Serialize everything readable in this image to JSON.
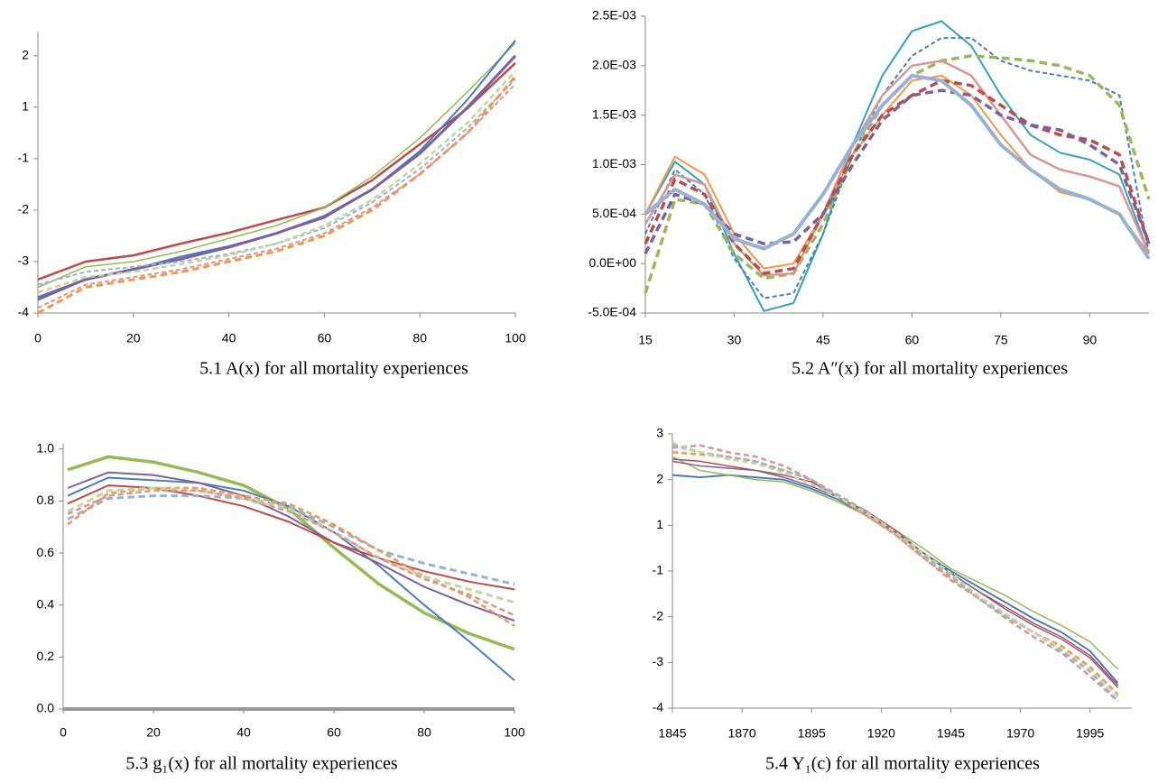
{
  "chart_data": [
    {
      "type": "line",
      "title": "5.1  A(x)  for all mortality experiences",
      "x": [
        0,
        10,
        20,
        30,
        40,
        50,
        60,
        70,
        80,
        90,
        100
      ],
      "xlim": [
        0,
        100
      ],
      "xticks": [
        0,
        20,
        40,
        60,
        80,
        100
      ],
      "ylim": [
        -4,
        1.47
      ],
      "yticks": [
        -4,
        -3,
        -2,
        -1,
        {
          "value": 0,
          "label": "1"
        },
        {
          "value": 1,
          "label": "2"
        }
      ],
      "series": [
        {
          "color": "#be4b48",
          "dash": false,
          "width": 2.5,
          "values": [
            -3.35,
            -3.0,
            -2.88,
            -2.65,
            -2.44,
            -2.19,
            -1.95,
            -1.42,
            -0.72,
            -0.02,
            0.86
          ]
        },
        {
          "color": "#98b954",
          "dash": false,
          "width": 1.5,
          "values": [
            -3.5,
            -3.1,
            -3.0,
            -2.8,
            -2.55,
            -2.3,
            -1.95,
            -1.35,
            -0.6,
            0.3,
            1.25
          ]
        },
        {
          "color": "#4a7ebb",
          "dash": false,
          "width": 2,
          "values": [
            -3.75,
            -3.35,
            -3.15,
            -2.9,
            -2.7,
            -2.45,
            -2.15,
            -1.6,
            -0.85,
            0.15,
            1.3
          ]
        },
        {
          "color": "#7d60a0",
          "dash": false,
          "width": 3,
          "values": [
            -3.7,
            -3.35,
            -3.15,
            -2.95,
            -2.72,
            -2.45,
            -2.12,
            -1.6,
            -0.9,
            0.0,
            1.0
          ]
        },
        {
          "color": "#95b3d7",
          "dash": true,
          "width": 2,
          "values": [
            -3.45,
            -3.2,
            -3.1,
            -3.0,
            -2.85,
            -2.65,
            -2.35,
            -1.85,
            -1.2,
            -0.4,
            0.55
          ]
        },
        {
          "color": "#c3d69b",
          "dash": true,
          "width": 2.5,
          "values": [
            -3.6,
            -3.3,
            -3.2,
            -3.05,
            -2.88,
            -2.65,
            -2.3,
            -1.8,
            -1.1,
            -0.3,
            0.7
          ]
        },
        {
          "color": "#f79646",
          "dash": true,
          "width": 3,
          "values": [
            -4.0,
            -3.5,
            -3.35,
            -3.2,
            -3.0,
            -2.8,
            -2.5,
            -2.0,
            -1.3,
            -0.5,
            0.6
          ]
        },
        {
          "color": "#d99694",
          "dash": true,
          "width": 2,
          "values": [
            -3.9,
            -3.45,
            -3.3,
            -3.15,
            -2.95,
            -2.75,
            -2.45,
            -1.95,
            -1.3,
            -0.5,
            0.45
          ]
        }
      ]
    },
    {
      "type": "line",
      "title": "5.2  A″(x)  for all mortality experiences",
      "x": [
        15,
        20,
        25,
        30,
        35,
        40,
        45,
        50,
        55,
        60,
        65,
        70,
        75,
        80,
        85,
        90,
        95,
        100
      ],
      "xlim": [
        15,
        100
      ],
      "xticks": [
        15,
        30,
        45,
        60,
        75,
        90
      ],
      "ylim": [
        -0.0005,
        0.0025
      ],
      "yticks": [
        {
          "value": -0.0005,
          "label": "-5.0E-04"
        },
        {
          "value": 0,
          "label": "0.0E+00"
        },
        {
          "value": 0.0005,
          "label": "5.0E-04"
        },
        {
          "value": 0.001,
          "label": "1.0E-03"
        },
        {
          "value": 0.0015,
          "label": "1.5E-03"
        },
        {
          "value": 0.002,
          "label": "2.0E-03"
        },
        {
          "value": 0.0025,
          "label": "2.5E-03"
        }
      ],
      "series": [
        {
          "color": "#31a3c0",
          "dash": false,
          "width": 2,
          "values": [
            0.0005,
            0.00103,
            0.0008,
            0.0001,
            -0.00048,
            -0.0004,
            0.0003,
            0.0012,
            0.0019,
            0.00235,
            0.00245,
            0.0022,
            0.0017,
            0.0013,
            0.00112,
            0.00105,
            0.0009,
            0.0001
          ]
        },
        {
          "color": "#4a7ebb",
          "dash": true,
          "width": 2,
          "values": [
            0.0003,
            0.00095,
            0.0007,
            5e-05,
            -0.00035,
            -0.0003,
            0.0003,
            0.0011,
            0.0017,
            0.0021,
            0.00228,
            0.00228,
            0.00205,
            0.00195,
            0.0019,
            0.00185,
            0.0017,
            0.0001
          ]
        },
        {
          "color": "#98b954",
          "dash": true,
          "width": 3.5,
          "values": [
            -0.0003,
            0.00065,
            0.0006,
            0.0001,
            -0.00015,
            -0.0001,
            0.0004,
            0.0011,
            0.0016,
            0.0019,
            0.00205,
            0.0021,
            0.00208,
            0.00205,
            0.002,
            0.0019,
            0.0016,
            0.00065
          ]
        },
        {
          "color": "#f79646",
          "dash": false,
          "width": 2,
          "values": [
            0.0005,
            0.00108,
            0.0009,
            0.0003,
            -5e-05,
            0.0,
            0.0005,
            0.0011,
            0.0015,
            0.00185,
            0.0019,
            0.0017,
            0.0013,
            0.00095,
            0.00072,
            0.00065,
            0.0005,
            0.0001
          ]
        },
        {
          "color": "#d99694",
          "dash": false,
          "width": 2.5,
          "values": [
            0.0004,
            0.0009,
            0.0008,
            0.0002,
            -0.00012,
            -0.0001,
            0.0005,
            0.0012,
            0.0017,
            0.002,
            0.00205,
            0.0019,
            0.0015,
            0.0011,
            0.00095,
            0.00088,
            0.00078,
            0.0001
          ]
        },
        {
          "color": "#be4b48",
          "dash": true,
          "width": 3.5,
          "values": [
            0.0002,
            0.00085,
            0.0007,
            0.0002,
            -0.0001,
            -5e-05,
            0.0005,
            0.0011,
            0.0015,
            0.0017,
            0.00185,
            0.0018,
            0.0016,
            0.0014,
            0.0013,
            0.00125,
            0.0011,
            0.0002
          ]
        },
        {
          "color": "#7d60a0",
          "dash": true,
          "width": 3.5,
          "values": [
            0.0001,
            0.0007,
            0.0006,
            0.0003,
            0.0002,
            0.00022,
            0.0005,
            0.001,
            0.00145,
            0.0017,
            0.00175,
            0.0017,
            0.0015,
            0.0014,
            0.00135,
            0.0012,
            0.001,
            0.0002
          ]
        },
        {
          "color": "#95b3d7",
          "dash": false,
          "width": 4,
          "values": [
            0.0005,
            0.00075,
            0.0006,
            0.00025,
            0.00015,
            0.0003,
            0.0007,
            0.0012,
            0.0016,
            0.0019,
            0.00185,
            0.0016,
            0.0012,
            0.00095,
            0.00075,
            0.00065,
            0.0005,
            5e-05
          ]
        }
      ]
    },
    {
      "type": "line",
      "title": "5.3  g₁(x)  for all mortality experiences",
      "x": [
        1,
        10,
        20,
        30,
        40,
        50,
        60,
        70,
        80,
        90,
        100
      ],
      "xlim": [
        0,
        100
      ],
      "xticks": [
        0,
        20,
        40,
        60,
        80,
        100
      ],
      "ylim": [
        0,
        1.02
      ],
      "yticks": [
        {
          "value": 0,
          "label": "0.0"
        },
        0.2,
        0.4,
        0.6,
        0.8,
        {
          "value": 1,
          "label": "1.0"
        }
      ],
      "series": [
        {
          "color": "#98b954",
          "dash": false,
          "width": 3.5,
          "values": [
            0.92,
            0.97,
            0.95,
            0.91,
            0.86,
            0.77,
            0.62,
            0.48,
            0.37,
            0.29,
            0.23
          ]
        },
        {
          "color": "#4a7ebb",
          "dash": false,
          "width": 2,
          "values": [
            0.82,
            0.89,
            0.88,
            0.87,
            0.84,
            0.78,
            0.68,
            0.55,
            0.4,
            0.26,
            0.11
          ]
        },
        {
          "color": "#7d60a0",
          "dash": false,
          "width": 2,
          "values": [
            0.85,
            0.91,
            0.9,
            0.87,
            0.82,
            0.74,
            0.64,
            0.56,
            0.47,
            0.4,
            0.34
          ]
        },
        {
          "color": "#be4b48",
          "dash": false,
          "width": 2,
          "values": [
            0.79,
            0.86,
            0.85,
            0.82,
            0.78,
            0.72,
            0.64,
            0.58,
            0.53,
            0.49,
            0.46
          ]
        },
        {
          "color": "#95b3d7",
          "dash": true,
          "width": 3,
          "values": [
            0.73,
            0.81,
            0.82,
            0.82,
            0.81,
            0.78,
            0.7,
            0.61,
            0.56,
            0.52,
            0.48
          ]
        },
        {
          "color": "#f79646",
          "dash": true,
          "width": 2.5,
          "values": [
            0.71,
            0.83,
            0.85,
            0.85,
            0.82,
            0.79,
            0.71,
            0.61,
            0.51,
            0.43,
            0.32
          ]
        },
        {
          "color": "#c3d69b",
          "dash": true,
          "width": 3,
          "values": [
            0.76,
            0.84,
            0.85,
            0.84,
            0.81,
            0.77,
            0.68,
            0.58,
            0.51,
            0.46,
            0.41
          ]
        },
        {
          "color": "#d99694",
          "dash": true,
          "width": 2.5,
          "values": [
            0.75,
            0.82,
            0.84,
            0.84,
            0.81,
            0.76,
            0.68,
            0.58,
            0.5,
            0.44,
            0.36
          ]
        }
      ]
    },
    {
      "type": "line",
      "title": "5.4  Y₁(c)  for all mortality experiences",
      "x": [
        1845,
        1855,
        1865,
        1875,
        1885,
        1895,
        1905,
        1915,
        1925,
        1935,
        1945,
        1955,
        1965,
        1975,
        1985,
        1995,
        2005
      ],
      "xlim": [
        1845,
        2010
      ],
      "xticks": [
        1845,
        1870,
        1895,
        1920,
        1945,
        1970,
        1995
      ],
      "ylim": [
        -4,
        2
      ],
      "yticks": [
        -4,
        -3,
        -2,
        -1,
        {
          "value": 0,
          "label": "1"
        },
        {
          "value": 1,
          "label": "2"
        },
        {
          "value": 2,
          "label": "3"
        }
      ],
      "series": [
        {
          "color": "#4a7ebb",
          "dash": false,
          "width": 2,
          "values": [
            1.1,
            1.05,
            1.1,
            1.05,
            1.0,
            0.8,
            0.55,
            0.2,
            -0.15,
            -0.6,
            -1.0,
            -1.35,
            -1.7,
            -2.05,
            -2.35,
            -2.75,
            -3.45
          ]
        },
        {
          "color": "#98b954",
          "dash": false,
          "width": 1.5,
          "values": [
            1.5,
            1.2,
            1.1,
            1.0,
            0.95,
            0.75,
            0.5,
            0.2,
            -0.1,
            -0.5,
            -0.95,
            -1.25,
            -1.55,
            -1.9,
            -2.2,
            -2.55,
            -3.15
          ]
        },
        {
          "color": "#be4b48",
          "dash": false,
          "width": 1.5,
          "values": [
            1.45,
            1.4,
            1.3,
            1.2,
            1.1,
            0.95,
            0.6,
            0.3,
            -0.1,
            -0.6,
            -1.05,
            -1.45,
            -1.8,
            -2.15,
            -2.45,
            -2.85,
            -3.5
          ]
        },
        {
          "color": "#7d60a0",
          "dash": false,
          "width": 1.5,
          "values": [
            1.4,
            1.3,
            1.25,
            1.2,
            1.05,
            0.85,
            0.6,
            0.25,
            -0.15,
            -0.6,
            -1.05,
            -1.45,
            -1.85,
            -2.2,
            -2.5,
            -2.9,
            -3.55
          ]
        },
        {
          "color": "#f79646",
          "dash": true,
          "width": 2.5,
          "values": [
            1.6,
            1.55,
            1.5,
            1.4,
            1.2,
            1.0,
            0.6,
            0.2,
            -0.2,
            -0.7,
            -1.15,
            -1.6,
            -2.0,
            -2.35,
            -2.65,
            -3.1,
            -3.7
          ]
        },
        {
          "color": "#d99694",
          "dash": true,
          "width": 2.5,
          "values": [
            1.7,
            1.75,
            1.6,
            1.5,
            1.3,
            1.0,
            0.6,
            0.2,
            -0.2,
            -0.7,
            -1.2,
            -1.6,
            -2.05,
            -2.45,
            -2.8,
            -3.3,
            -3.85
          ]
        },
        {
          "color": "#95b3d7",
          "dash": true,
          "width": 2.5,
          "values": [
            1.75,
            1.6,
            1.5,
            1.4,
            1.2,
            1.0,
            0.65,
            0.3,
            -0.15,
            -0.65,
            -1.1,
            -1.6,
            -2.0,
            -2.35,
            -2.75,
            -3.2,
            -3.85
          ]
        },
        {
          "color": "#c3d69b",
          "dash": true,
          "width": 2.5,
          "values": [
            1.8,
            1.6,
            1.45,
            1.35,
            1.15,
            0.9,
            0.6,
            0.25,
            -0.15,
            -0.6,
            -1.05,
            -1.55,
            -1.95,
            -2.35,
            -2.7,
            -3.15,
            -3.75
          ]
        }
      ]
    }
  ]
}
